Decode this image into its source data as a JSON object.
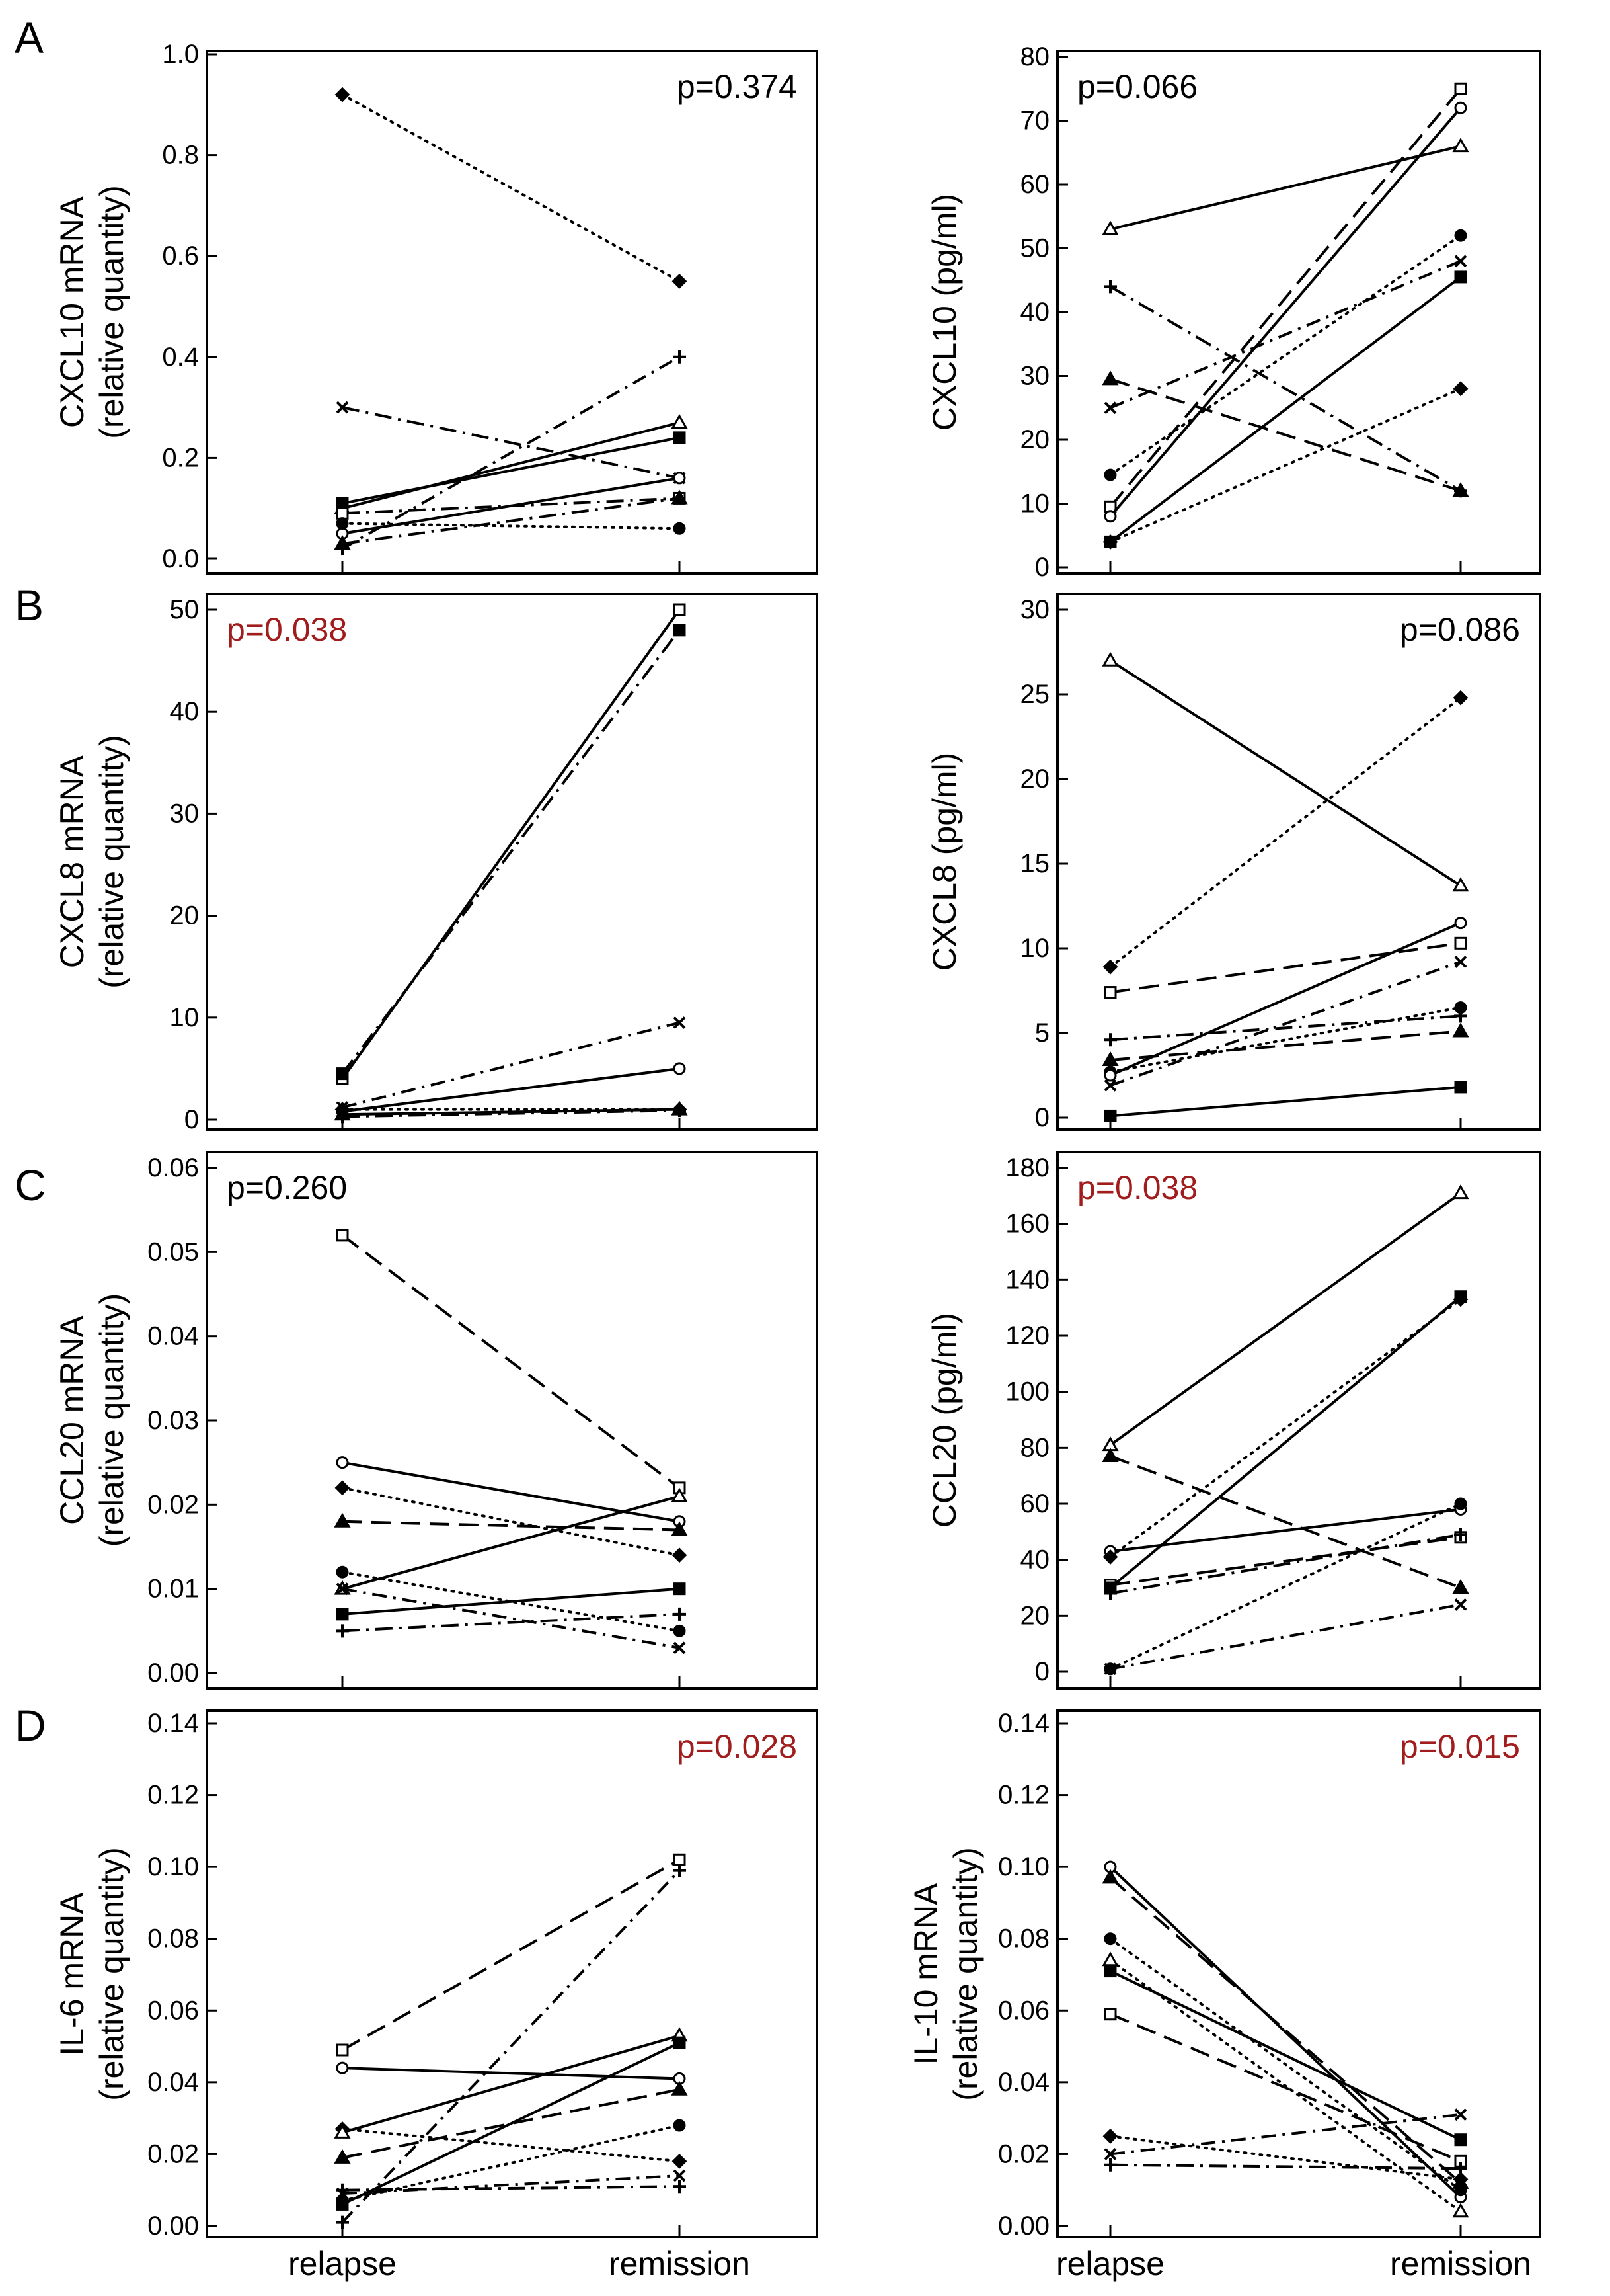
{
  "figure": {
    "xcategories": [
      "relapse",
      "remission"
    ],
    "colors": {
      "axis": "#000000",
      "significant": "#a11d1d",
      "nonsignificant": "#000000"
    }
  },
  "chart_data": [
    {
      "type": "line",
      "panel_label": "A",
      "ylabel": [
        "CXCL10 mRNA",
        "(relative quantity)"
      ],
      "pvalue": "p=0.374",
      "significant": false,
      "pos": "top-right",
      "ylim": [
        0,
        1.0
      ],
      "yticks": [
        "0.0",
        "0.2",
        "0.4",
        "0.6",
        "0.8",
        "1.0"
      ],
      "categories": [
        "relapse",
        "remission"
      ],
      "series": [
        {
          "name": "filled-diamond",
          "marker": "diamond",
          "style": "dotted",
          "values": [
            0.92,
            0.55
          ]
        },
        {
          "name": "x-cross",
          "marker": "x",
          "style": "dashed",
          "values": [
            0.3,
            0.16
          ]
        },
        {
          "name": "plus",
          "marker": "plus",
          "style": "dashdot",
          "values": [
            0.02,
            0.4
          ]
        },
        {
          "name": "open-triangle",
          "marker": "triangle-open",
          "style": "solid",
          "values": [
            0.1,
            0.27
          ]
        },
        {
          "name": "filled-square",
          "marker": "square",
          "style": "solid",
          "values": [
            0.11,
            0.24
          ]
        },
        {
          "name": "open-circle",
          "marker": "circle-open",
          "style": "solid",
          "values": [
            0.05,
            0.16
          ]
        },
        {
          "name": "open-square",
          "marker": "square-open",
          "style": "dashed",
          "values": [
            0.09,
            0.12
          ]
        },
        {
          "name": "filled-triangle",
          "marker": "triangle",
          "style": "dashed",
          "values": [
            0.03,
            0.12
          ]
        },
        {
          "name": "filled-circle",
          "marker": "circle",
          "style": "dotted",
          "values": [
            0.07,
            0.06
          ]
        }
      ]
    },
    {
      "type": "line",
      "panel_label": "",
      "ylabel": [
        "CXCL10  (pg/ml)"
      ],
      "pvalue": "p=0.066",
      "significant": false,
      "pos": "top-left",
      "ylim": [
        0,
        80
      ],
      "yticks": [
        "0",
        "10",
        "20",
        "30",
        "40",
        "50",
        "60",
        "70",
        "80"
      ],
      "categories": [
        "relapse",
        "remission"
      ],
      "series": [
        {
          "name": "open-triangle",
          "marker": "triangle-open",
          "style": "solid",
          "values": [
            53,
            66
          ]
        },
        {
          "name": "plus",
          "marker": "plus",
          "style": "dashed",
          "values": [
            44,
            12
          ]
        },
        {
          "name": "filled-triangle",
          "marker": "triangle",
          "style": "longdash",
          "values": [
            29.5,
            12
          ]
        },
        {
          "name": "x-cross",
          "marker": "x",
          "style": "dashdot",
          "values": [
            25,
            48
          ]
        },
        {
          "name": "filled-circle",
          "marker": "circle",
          "style": "dotted",
          "values": [
            14.5,
            52
          ]
        },
        {
          "name": "open-square",
          "marker": "square-open",
          "style": "longdash",
          "values": [
            9.5,
            75
          ]
        },
        {
          "name": "open-circle",
          "marker": "circle-open",
          "style": "solid",
          "values": [
            8,
            72
          ]
        },
        {
          "name": "filled-diamond",
          "marker": "diamond",
          "style": "dotted",
          "values": [
            4,
            28
          ]
        },
        {
          "name": "filled-square",
          "marker": "square",
          "style": "solid",
          "values": [
            4,
            45.5
          ]
        }
      ]
    },
    {
      "type": "line",
      "panel_label": "B",
      "ylabel": [
        "CXCL8 mRNA",
        "(relative quantity)"
      ],
      "pvalue": "p=0.038",
      "significant": true,
      "pos": "top-left",
      "ylim": [
        0,
        50
      ],
      "yticks": [
        "0",
        "10",
        "20",
        "30",
        "40",
        "50"
      ],
      "categories": [
        "relapse",
        "remission"
      ],
      "series": [
        {
          "name": "open-square",
          "marker": "square-open",
          "style": "solid",
          "values": [
            4,
            50
          ]
        },
        {
          "name": "filled-square",
          "marker": "square",
          "style": "dashed",
          "values": [
            4.5,
            48
          ]
        },
        {
          "name": "x-cross",
          "marker": "x",
          "style": "dashdot",
          "values": [
            1.2,
            9.5
          ]
        },
        {
          "name": "open-circle",
          "marker": "circle-open",
          "style": "solid",
          "values": [
            0.8,
            5
          ]
        },
        {
          "name": "filled-diamond",
          "marker": "diamond",
          "style": "dotted",
          "values": [
            1,
            1
          ]
        },
        {
          "name": "filled-triangle",
          "marker": "triangle",
          "style": "solid",
          "values": [
            0.5,
            1
          ]
        },
        {
          "name": "plus",
          "marker": "plus",
          "style": "dashed",
          "values": [
            0.3,
            0.9
          ]
        }
      ]
    },
    {
      "type": "line",
      "panel_label": "",
      "ylabel": [
        "CXCL8  (pg/ml)"
      ],
      "pvalue": "p=0.086",
      "significant": false,
      "pos": "top-right",
      "ylim": [
        0,
        30
      ],
      "yticks": [
        "0",
        "5",
        "10",
        "15",
        "20",
        "25",
        "30"
      ],
      "categories": [
        "relapse",
        "remission"
      ],
      "series": [
        {
          "name": "open-triangle",
          "marker": "triangle-open",
          "style": "solid",
          "values": [
            27,
            13.7
          ]
        },
        {
          "name": "filled-diamond",
          "marker": "diamond",
          "style": "dotted",
          "values": [
            8.9,
            24.8
          ]
        },
        {
          "name": "open-square",
          "marker": "square-open",
          "style": "longdash",
          "values": [
            7.4,
            10.3
          ]
        },
        {
          "name": "plus",
          "marker": "plus",
          "style": "dashed",
          "values": [
            4.6,
            6
          ]
        },
        {
          "name": "filled-triangle",
          "marker": "triangle",
          "style": "longdash",
          "values": [
            3.4,
            5.1
          ]
        },
        {
          "name": "filled-circle",
          "marker": "circle",
          "style": "dotted",
          "values": [
            2.7,
            6.5
          ]
        },
        {
          "name": "open-circle",
          "marker": "circle-open",
          "style": "solid",
          "values": [
            2.5,
            11.5
          ]
        },
        {
          "name": "x-cross",
          "marker": "x",
          "style": "dashdot",
          "values": [
            1.9,
            9.2
          ]
        },
        {
          "name": "filled-square",
          "marker": "square",
          "style": "solid",
          "values": [
            0.1,
            1.8
          ]
        }
      ]
    },
    {
      "type": "line",
      "panel_label": "C",
      "ylabel": [
        "CCL20 mRNA",
        "(relative quantity)"
      ],
      "pvalue": "p=0.260",
      "significant": false,
      "pos": "top-left",
      "ylim": [
        0,
        0.06
      ],
      "yticks": [
        "0.00",
        "0.01",
        "0.02",
        "0.03",
        "0.04",
        "0.05",
        "0.06"
      ],
      "categories": [
        "relapse",
        "remission"
      ],
      "series": [
        {
          "name": "open-square",
          "marker": "square-open",
          "style": "longdash",
          "values": [
            0.052,
            0.022
          ]
        },
        {
          "name": "open-circle",
          "marker": "circle-open",
          "style": "solid",
          "values": [
            0.025,
            0.018
          ]
        },
        {
          "name": "filled-diamond",
          "marker": "diamond",
          "style": "dotted",
          "values": [
            0.022,
            0.014
          ]
        },
        {
          "name": "filled-triangle",
          "marker": "triangle",
          "style": "longdash",
          "values": [
            0.018,
            0.017
          ]
        },
        {
          "name": "filled-circle",
          "marker": "circle",
          "style": "dotted",
          "values": [
            0.012,
            0.005
          ]
        },
        {
          "name": "open-triangle",
          "marker": "triangle-open",
          "style": "solid",
          "values": [
            0.01,
            0.021
          ]
        },
        {
          "name": "x-cross",
          "marker": "x",
          "style": "dashdot",
          "values": [
            0.01,
            0.003
          ]
        },
        {
          "name": "filled-square",
          "marker": "square",
          "style": "solid",
          "values": [
            0.007,
            0.01
          ]
        },
        {
          "name": "plus",
          "marker": "plus",
          "style": "dashed",
          "values": [
            0.005,
            0.007
          ]
        }
      ]
    },
    {
      "type": "line",
      "panel_label": "",
      "ylabel": [
        "CCL20 (pg/ml)"
      ],
      "pvalue": "p=0.038",
      "significant": true,
      "pos": "top-left",
      "ylim": [
        0,
        180
      ],
      "yticks": [
        "0",
        "20",
        "40",
        "60",
        "80",
        "100",
        "120",
        "140",
        "160",
        "180"
      ],
      "categories": [
        "relapse",
        "remission"
      ],
      "series": [
        {
          "name": "open-triangle",
          "marker": "triangle-open",
          "style": "solid",
          "values": [
            81,
            171
          ]
        },
        {
          "name": "filled-triangle",
          "marker": "triangle",
          "style": "longdash",
          "values": [
            77,
            30
          ]
        },
        {
          "name": "open-circle",
          "marker": "circle-open",
          "style": "solid",
          "values": [
            43,
            58
          ]
        },
        {
          "name": "filled-diamond",
          "marker": "diamond",
          "style": "dotted",
          "values": [
            41,
            133
          ]
        },
        {
          "name": "open-square",
          "marker": "square-open",
          "style": "longdash",
          "values": [
            31,
            48
          ]
        },
        {
          "name": "filled-square",
          "marker": "square",
          "style": "solid",
          "values": [
            30,
            134
          ]
        },
        {
          "name": "plus",
          "marker": "plus",
          "style": "dashed",
          "values": [
            28,
            49
          ]
        },
        {
          "name": "filled-circle",
          "marker": "circle",
          "style": "dotted",
          "values": [
            1,
            60
          ]
        },
        {
          "name": "x-cross",
          "marker": "x",
          "style": "dashdot",
          "values": [
            1,
            24
          ]
        }
      ]
    },
    {
      "type": "line",
      "panel_label": "D",
      "ylabel": [
        "IL-6 mRNA",
        "(relative quantity)"
      ],
      "pvalue": "p=0.028",
      "significant": true,
      "pos": "top-right",
      "ylim": [
        0,
        0.14
      ],
      "yticks": [
        "0.00",
        "0.02",
        "0.04",
        "0.06",
        "0.08",
        "0.10",
        "0.12",
        "0.14"
      ],
      "categories": [
        "relapse",
        "remission"
      ],
      "series": [
        {
          "name": "open-square",
          "marker": "square-open",
          "style": "longdash",
          "values": [
            0.049,
            0.102
          ]
        },
        {
          "name": "open-circle",
          "marker": "circle-open",
          "style": "solid",
          "values": [
            0.044,
            0.041
          ]
        },
        {
          "name": "filled-diamond",
          "marker": "diamond",
          "style": "dotted",
          "values": [
            0.027,
            0.018
          ]
        },
        {
          "name": "open-triangle",
          "marker": "triangle-open",
          "style": "solid",
          "values": [
            0.026,
            0.053
          ]
        },
        {
          "name": "filled-triangle",
          "marker": "triangle",
          "style": "longdash",
          "values": [
            0.019,
            0.038
          ]
        },
        {
          "name": "plus",
          "marker": "plus",
          "style": "dashed",
          "values": [
            0.01,
            0.011
          ]
        },
        {
          "name": "x-cross",
          "marker": "x",
          "style": "dashdot",
          "values": [
            0.009,
            0.014
          ]
        },
        {
          "name": "filled-square",
          "marker": "square",
          "style": "solid",
          "values": [
            0.006,
            0.051
          ]
        },
        {
          "name": "filled-circle",
          "marker": "circle",
          "style": "dotted",
          "values": [
            0.007,
            0.028
          ]
        },
        {
          "name": "plus-2",
          "marker": "plus",
          "style": "dashdot",
          "values": [
            0.001,
            0.099
          ]
        }
      ]
    },
    {
      "type": "line",
      "panel_label": "",
      "ylabel": [
        "IL-10 mRNA",
        "(relative quantity)"
      ],
      "pvalue": "p=0.015",
      "significant": true,
      "pos": "top-right",
      "ylim": [
        0,
        0.14
      ],
      "yticks": [
        "0.00",
        "0.02",
        "0.04",
        "0.06",
        "0.08",
        "0.10",
        "0.12",
        "0.14"
      ],
      "categories": [
        "relapse",
        "remission"
      ],
      "series": [
        {
          "name": "open-circle",
          "marker": "circle-open",
          "style": "solid",
          "values": [
            0.1,
            0.008
          ]
        },
        {
          "name": "filled-triangle",
          "marker": "triangle",
          "style": "longdash",
          "values": [
            0.097,
            0.012
          ]
        },
        {
          "name": "filled-circle",
          "marker": "circle",
          "style": "dotted",
          "values": [
            0.08,
            0.01
          ]
        },
        {
          "name": "open-triangle",
          "marker": "triangle-open",
          "style": "dotted",
          "values": [
            0.074,
            0.004
          ]
        },
        {
          "name": "filled-square",
          "marker": "square",
          "style": "solid",
          "values": [
            0.071,
            0.024
          ]
        },
        {
          "name": "open-square",
          "marker": "square-open",
          "style": "longdash",
          "values": [
            0.059,
            0.018
          ]
        },
        {
          "name": "filled-diamond",
          "marker": "diamond",
          "style": "dotted",
          "values": [
            0.025,
            0.013
          ]
        },
        {
          "name": "x-cross",
          "marker": "x",
          "style": "dashdot",
          "values": [
            0.02,
            0.031
          ]
        },
        {
          "name": "plus",
          "marker": "plus",
          "style": "dashed",
          "values": [
            0.017,
            0.016
          ]
        }
      ]
    }
  ]
}
